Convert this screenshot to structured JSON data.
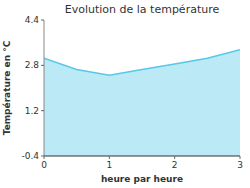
{
  "chart_data": {
    "type": "area",
    "title": "Evolution de la température",
    "xlabel": "heure par heure",
    "ylabel": "Température en °C",
    "x": [
      0,
      0.5,
      1.0,
      1.5,
      2.0,
      2.5,
      3.0
    ],
    "values": [
      3.05,
      2.65,
      2.45,
      2.65,
      2.85,
      3.05,
      3.35
    ],
    "color": "#56c8e8",
    "xlim": [
      0,
      3
    ],
    "ylim": [
      -0.4,
      4.4
    ],
    "xticks": [
      0,
      1,
      2,
      3
    ],
    "yticks": [
      -0.4,
      1.2,
      2.8,
      4.4
    ],
    "grid": false
  }
}
